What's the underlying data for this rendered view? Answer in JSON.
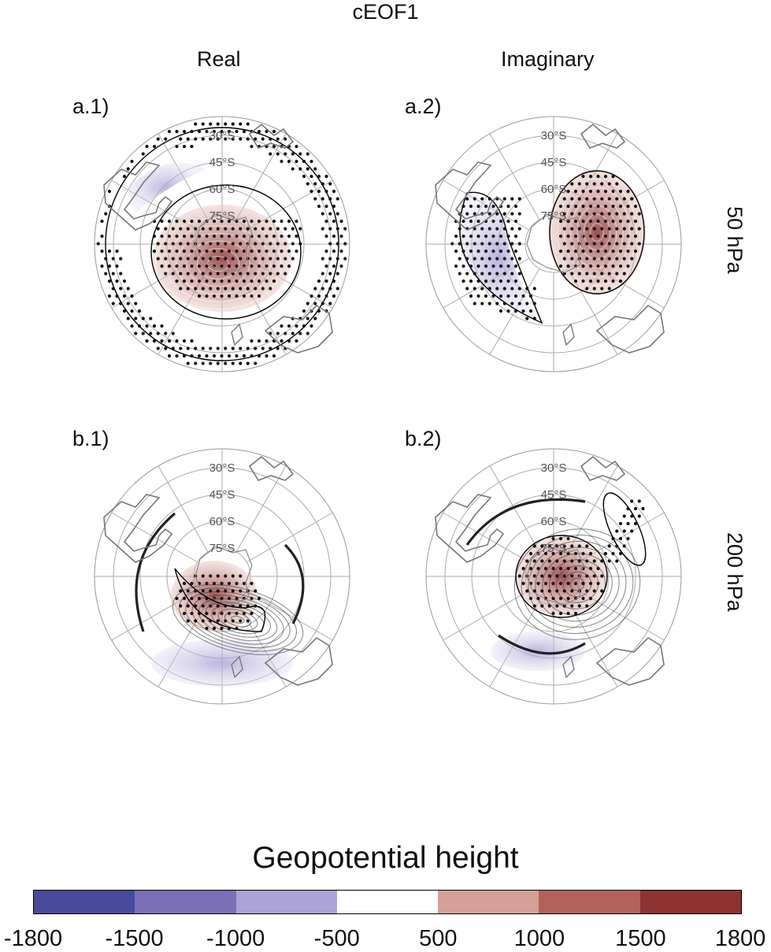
{
  "title": "cEOF1",
  "columns": [
    "Real",
    "Imaginary"
  ],
  "rows": [
    "50 hPa",
    "200 hPa"
  ],
  "panels": [
    {
      "label": "a.1)"
    },
    {
      "label": "a.2)"
    },
    {
      "label": "b.1)"
    },
    {
      "label": "b.2)"
    }
  ],
  "latitude_labels": [
    "30°S",
    "45°S",
    "60°S",
    "75°S"
  ],
  "colorbar": {
    "title": "Geopotential height",
    "ticks": [
      "-1800",
      "-1500",
      "-1000",
      "-500",
      "500",
      "1000",
      "1500",
      "1800"
    ],
    "colors": [
      "#4a4a9c",
      "#7b6fb8",
      "#aca3d6",
      "#ffffff",
      "#d6a098",
      "#b2625b",
      "#8e3232"
    ]
  }
}
